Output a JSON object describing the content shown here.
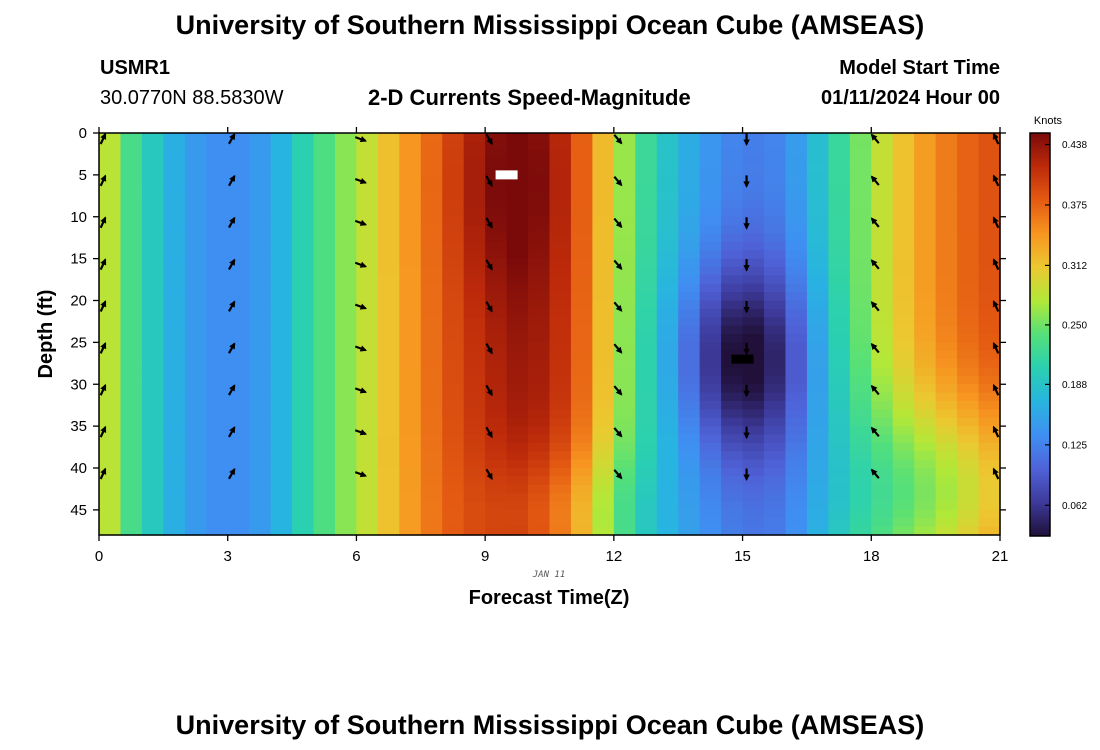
{
  "header": {
    "title": "University of Southern Mississippi Ocean Cube (AMSEAS)",
    "station_id": "USMR1",
    "station_coords": "30.0770N  88.5830W",
    "plot_title": "2-D Currents Speed-Magnitude",
    "model_start_label": "Model Start Time",
    "model_start_value": "01/11/2024 Hour 00"
  },
  "footer": {
    "title": "University of Southern Mississippi Ocean Cube (AMSEAS)"
  },
  "chart_data": {
    "type": "heatmap",
    "title": "2-D Currents Speed-Magnitude",
    "xlabel": "Forecast Time(Z)",
    "ylabel": "Depth (ft)",
    "date_label": "JAN 11",
    "x_ticks": [
      0,
      3,
      6,
      9,
      12,
      15,
      18,
      21
    ],
    "y_ticks": [
      0,
      5,
      10,
      15,
      20,
      25,
      30,
      35,
      40,
      45
    ],
    "xlim": [
      0,
      21
    ],
    "ylim": [
      0,
      48
    ],
    "colorbar": {
      "unit": "Knots",
      "ticks": [
        "0.438",
        "0.375",
        "0.312",
        "0.250",
        "0.188",
        "0.125",
        "0.062"
      ],
      "range": [
        0.03,
        0.45
      ],
      "palette": [
        "#20103a",
        "#3d3a9a",
        "#4f62d8",
        "#3f8ff2",
        "#28b4e0",
        "#2ad0b0",
        "#54e07a",
        "#b2e838",
        "#ecc830",
        "#f79520",
        "#e45a12",
        "#bd2a0a",
        "#7a0a0a"
      ]
    },
    "speed_profile_by_hour": [
      {
        "hour": 0,
        "speed": 0.31
      },
      {
        "hour": 0.5,
        "speed": 0.25
      },
      {
        "hour": 1,
        "speed": 0.21
      },
      {
        "hour": 1.5,
        "speed": 0.18
      },
      {
        "hour": 2,
        "speed": 0.15
      },
      {
        "hour": 3,
        "speed": 0.13
      },
      {
        "hour": 4,
        "speed": 0.15
      },
      {
        "hour": 4.5,
        "speed": 0.19
      },
      {
        "hour": 5,
        "speed": 0.22
      },
      {
        "hour": 5.5,
        "speed": 0.25
      },
      {
        "hour": 6,
        "speed": 0.27
      },
      {
        "hour": 7,
        "speed": 0.33
      },
      {
        "hour": 8,
        "speed": 0.38
      },
      {
        "hour": 9,
        "speed": 0.415
      },
      {
        "hour": 10,
        "speed": 0.435
      },
      {
        "hour": 11,
        "speed": 0.4
      },
      {
        "hour": 12,
        "speed": 0.29
      },
      {
        "hour": 12.5,
        "speed": 0.24
      },
      {
        "hour": 13,
        "speed": 0.2
      },
      {
        "hour": 14,
        "speed": 0.15
      },
      {
        "hour": 15,
        "speed": 0.12
      },
      {
        "hour": 16,
        "speed": 0.13
      },
      {
        "hour": 17,
        "speed": 0.2
      },
      {
        "hour": 18,
        "speed": 0.27
      },
      {
        "hour": 19,
        "speed": 0.33
      },
      {
        "hour": 20,
        "speed": 0.37
      },
      {
        "hour": 21,
        "speed": 0.39
      }
    ],
    "arrow_hours": [
      0,
      3,
      6,
      9,
      12,
      15,
      18,
      21
    ],
    "arrow_depths": [
      0,
      5,
      10,
      15,
      20,
      25,
      30,
      35,
      40
    ],
    "arrow_directions_deg": [
      {
        "hour": 0,
        "deg": 25
      },
      {
        "hour": 3,
        "deg": 30
      },
      {
        "hour": 6,
        "deg": 110
      },
      {
        "hour": 9,
        "deg": 150
      },
      {
        "hour": 12,
        "deg": 140
      },
      {
        "hour": 15,
        "deg": 180
      },
      {
        "hour": 18,
        "deg": 320
      },
      {
        "hour": 21,
        "deg": 335
      }
    ],
    "markers": [
      {
        "label": "max",
        "hour": 9.5,
        "depth": 5,
        "color": "#ffffff"
      },
      {
        "label": "min",
        "hour": 15,
        "depth": 27,
        "color": "#000000"
      }
    ]
  }
}
